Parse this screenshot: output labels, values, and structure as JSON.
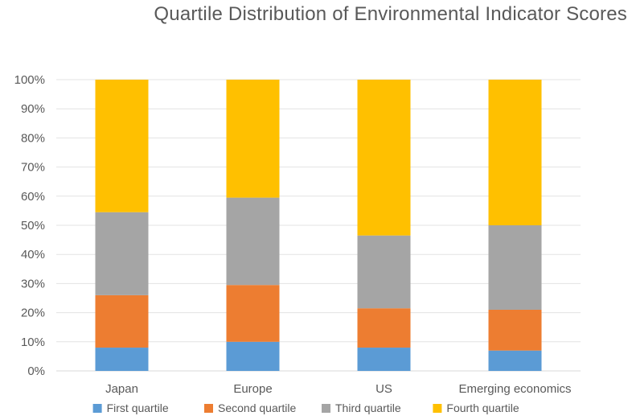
{
  "chart_data": {
    "type": "bar",
    "stacked": true,
    "percent": true,
    "title": "Quartile Distribution of Environmental Indicator Scores",
    "categories": [
      "Japan",
      "Europe",
      "US",
      "Emerging economics"
    ],
    "series": [
      {
        "name": "First quartile",
        "color": "#5b9bd5",
        "values": [
          8,
          10,
          8,
          7
        ]
      },
      {
        "name": "Second quartile",
        "color": "#ed7d31",
        "values": [
          18,
          19.5,
          13.5,
          14
        ]
      },
      {
        "name": "Third quartile",
        "color": "#a5a5a5",
        "values": [
          28.5,
          30,
          25,
          29
        ]
      },
      {
        "name": "Fourth quartile",
        "color": "#ffc000",
        "values": [
          45.5,
          40.5,
          53.5,
          50
        ]
      }
    ],
    "yticks": [
      "0%",
      "10%",
      "20%",
      "30%",
      "40%",
      "50%",
      "60%",
      "70%",
      "80%",
      "90%",
      "100%"
    ],
    "ylim": [
      0,
      100
    ],
    "grid": true,
    "legend": "bottom"
  }
}
